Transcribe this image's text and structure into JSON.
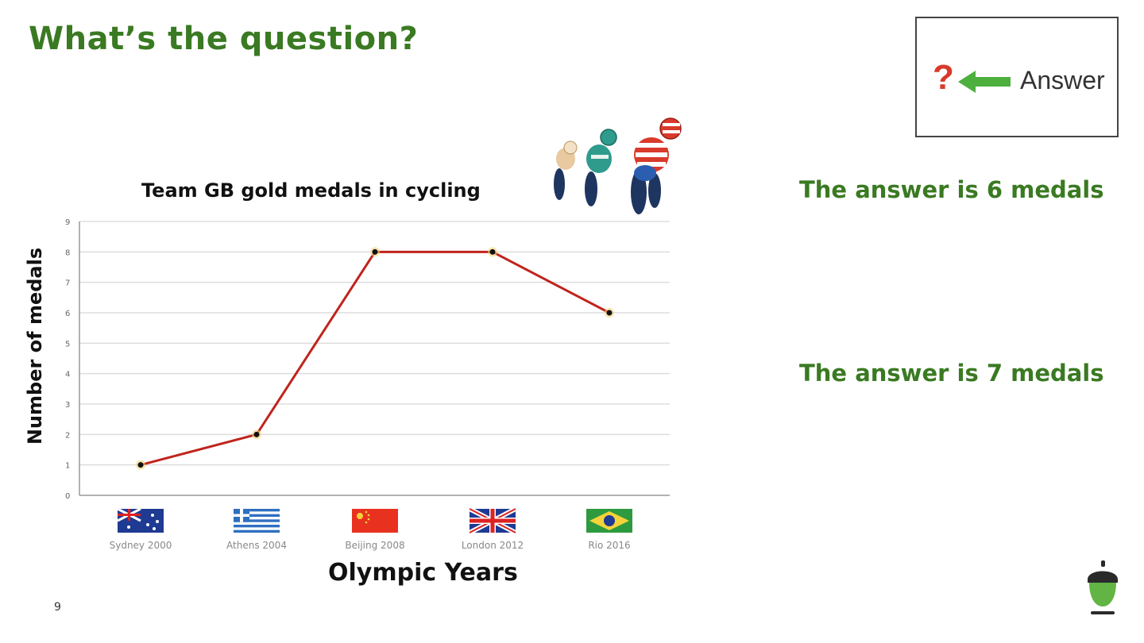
{
  "slide": {
    "title": "What’s the question?",
    "page_number": "9"
  },
  "answer_box": {
    "question_mark": "?",
    "label": "Answer"
  },
  "answers": [
    "The answer is 6 medals",
    "The answer is 7 medals"
  ],
  "icons": {
    "cyclists": "track-cyclists-illustration",
    "acorn": "acorn-logo-icon"
  },
  "chart_data": {
    "type": "line",
    "title": "Team GB gold medals in cycling",
    "xlabel": "Olympic Years",
    "ylabel": "Number of medals",
    "categories": [
      "Sydney 2000",
      "Athens 2004",
      "Beijing 2008",
      "London 2012",
      "Rio 2016"
    ],
    "flags": [
      "australia-flag",
      "greece-flag",
      "china-flag",
      "uk-flag",
      "brazil-flag"
    ],
    "values": [
      1,
      2,
      8,
      8,
      6
    ],
    "ylim": [
      0,
      9
    ],
    "yticks": [
      "0",
      "1",
      "2",
      "3",
      "4",
      "5",
      "6",
      "7",
      "8",
      "9"
    ],
    "grid": true,
    "colors": {
      "line": "#c0241c",
      "marker": "#111111",
      "grid": "#dddddd"
    }
  }
}
